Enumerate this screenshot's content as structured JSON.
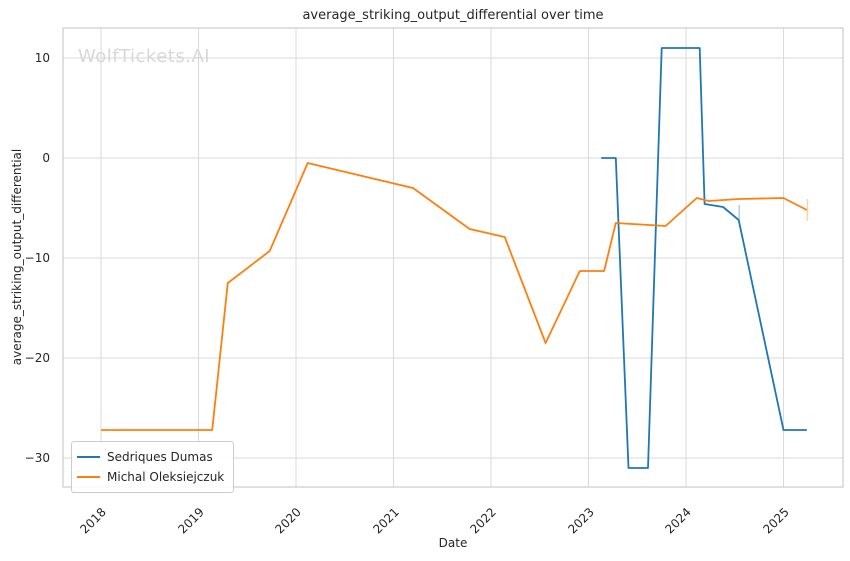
{
  "watermark": "WolfTickets.AI",
  "colors": {
    "background": "#ffffff",
    "grid": "#d9d9d9",
    "spine": "#cccccc",
    "text": "#262626",
    "watermark": "#d8d8d8",
    "series_blue": "#1f77b4",
    "series_orange": "#ff7f0e"
  },
  "chart_data": {
    "type": "line",
    "title": "average_striking_output_differential over time",
    "xlabel": "Date",
    "ylabel": "average_striking_output_differential",
    "grid": true,
    "legend_position": "lower left",
    "xlim": [
      2017.61,
      2025.61
    ],
    "ylim": [
      -32.9,
      13.0
    ],
    "x_ticks": [
      {
        "value": 2018,
        "label": "2018"
      },
      {
        "value": 2019,
        "label": "2019"
      },
      {
        "value": 2020,
        "label": "2020"
      },
      {
        "value": 2021,
        "label": "2021"
      },
      {
        "value": 2022,
        "label": "2022"
      },
      {
        "value": 2023,
        "label": "2023"
      },
      {
        "value": 2024,
        "label": "2024"
      },
      {
        "value": 2025,
        "label": "2025"
      }
    ],
    "y_ticks": [
      {
        "value": 10,
        "label": "10"
      },
      {
        "value": 0,
        "label": "0"
      },
      {
        "value": -10,
        "label": "−10"
      },
      {
        "value": -20,
        "label": "−20"
      },
      {
        "value": -30,
        "label": "−30"
      }
    ],
    "series": [
      {
        "name": "Sedriques Dumas",
        "color": "#1f77b4",
        "points": [
          [
            2023.13,
            0
          ],
          [
            2023.28,
            0
          ],
          [
            2023.41,
            -31
          ],
          [
            2023.61,
            -31
          ],
          [
            2023.75,
            11
          ],
          [
            2024.14,
            11
          ],
          [
            2024.19,
            -4.6
          ],
          [
            2024.38,
            -4.9
          ],
          [
            2024.54,
            -6.2
          ],
          [
            2025.0,
            -27.2
          ],
          [
            2025.24,
            -27.2
          ]
        ]
      },
      {
        "name": "Michal Oleksiejczuk",
        "color": "#ff7f0e",
        "points": [
          [
            2018.0,
            -27.2
          ],
          [
            2019.14,
            -27.2
          ],
          [
            2019.3,
            -12.5
          ],
          [
            2019.73,
            -9.3
          ],
          [
            2020.12,
            -0.5
          ],
          [
            2021.2,
            -3.0
          ],
          [
            2021.78,
            -7.1
          ],
          [
            2022.14,
            -7.9
          ],
          [
            2022.56,
            -18.5
          ],
          [
            2022.91,
            -11.3
          ],
          [
            2023.16,
            -11.3
          ],
          [
            2023.28,
            -6.5
          ],
          [
            2023.79,
            -6.8
          ],
          [
            2024.11,
            -4.0
          ],
          [
            2024.23,
            -4.3
          ],
          [
            2024.54,
            -4.1
          ],
          [
            2025.0,
            -4.0
          ],
          [
            2025.24,
            -5.2
          ]
        ]
      }
    ],
    "error_ticks": [
      {
        "series": "Sedriques Dumas",
        "x": 2024.545,
        "y1": -4.7,
        "y2": -6.2,
        "color": "#1f77b4",
        "opacity": 0.35
      },
      {
        "series": "Michal Oleksiejczuk",
        "x": 2025.245,
        "y1": -4.1,
        "y2": -6.3,
        "color": "#ff7f0e",
        "opacity": 0.35
      }
    ]
  }
}
